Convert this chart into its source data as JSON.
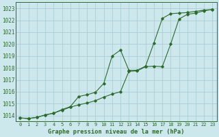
{
  "title": "Graphe pression niveau de la mer (hPa)",
  "bg_color": "#cce8ec",
  "grid_color": "#aacdd4",
  "line_color": "#2d6a2d",
  "xlim": [
    -0.5,
    23.5
  ],
  "ylim": [
    1013.5,
    1023.5
  ],
  "yticks": [
    1014,
    1015,
    1016,
    1017,
    1018,
    1019,
    1020,
    1021,
    1022,
    1023
  ],
  "xticks": [
    0,
    1,
    2,
    3,
    4,
    5,
    6,
    7,
    8,
    9,
    10,
    11,
    12,
    13,
    14,
    15,
    16,
    17,
    18,
    19,
    20,
    21,
    22,
    23
  ],
  "series1": [
    [
      0,
      1013.8
    ],
    [
      1,
      1013.75
    ],
    [
      2,
      1013.85
    ],
    [
      3,
      1014.05
    ],
    [
      4,
      1014.2
    ],
    [
      5,
      1014.45
    ],
    [
      6,
      1014.7
    ],
    [
      7,
      1014.9
    ],
    [
      8,
      1015.05
    ],
    [
      9,
      1015.25
    ],
    [
      10,
      1015.55
    ],
    [
      11,
      1015.8
    ],
    [
      12,
      1016.0
    ],
    [
      13,
      1017.7
    ],
    [
      14,
      1017.75
    ],
    [
      15,
      1018.1
    ],
    [
      16,
      1018.15
    ],
    [
      17,
      1018.1
    ],
    [
      18,
      1020.0
    ],
    [
      19,
      1022.1
    ],
    [
      20,
      1022.5
    ],
    [
      21,
      1022.6
    ],
    [
      22,
      1022.8
    ],
    [
      23,
      1022.9
    ]
  ],
  "series2": [
    [
      0,
      1013.8
    ],
    [
      1,
      1013.75
    ],
    [
      2,
      1013.85
    ],
    [
      3,
      1014.05
    ],
    [
      4,
      1014.2
    ],
    [
      5,
      1014.5
    ],
    [
      6,
      1014.75
    ],
    [
      7,
      1015.6
    ],
    [
      8,
      1015.75
    ],
    [
      9,
      1015.95
    ],
    [
      10,
      1016.7
    ],
    [
      11,
      1019.0
    ],
    [
      12,
      1019.5
    ],
    [
      13,
      1017.8
    ],
    [
      14,
      1017.8
    ],
    [
      15,
      1018.15
    ],
    [
      16,
      1020.1
    ],
    [
      17,
      1022.15
    ],
    [
      18,
      1022.55
    ],
    [
      19,
      1022.6
    ],
    [
      20,
      1022.65
    ],
    [
      21,
      1022.75
    ],
    [
      22,
      1022.85
    ],
    [
      23,
      1022.9
    ]
  ]
}
